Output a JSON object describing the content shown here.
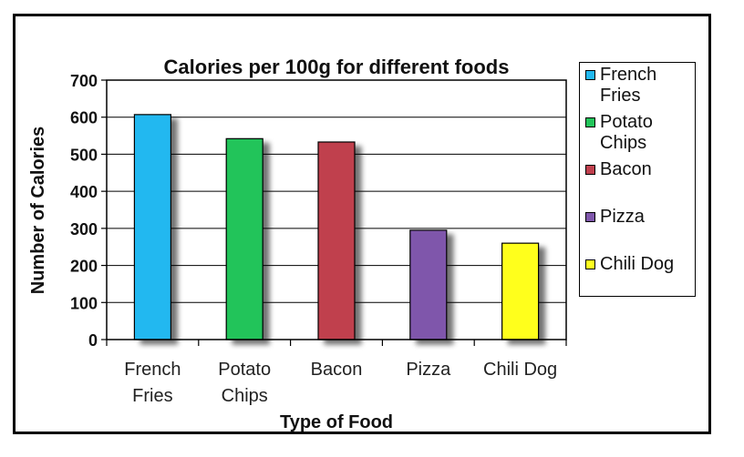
{
  "chart_data": {
    "type": "bar",
    "title": "Calories per 100g for different foods",
    "xlabel": "Type of Food",
    "ylabel": "Number of Calories",
    "ylim": [
      0,
      700
    ],
    "yticks": [
      0,
      100,
      200,
      300,
      400,
      500,
      600,
      700
    ],
    "grid": true,
    "legend_position": "right",
    "categories": [
      "French Fries",
      "Potato Chips",
      "Bacon",
      "Pizza",
      "Chili Dog"
    ],
    "values": [
      607,
      542,
      533,
      295,
      260
    ],
    "colors": [
      "#22b8f0",
      "#22c45a",
      "#c0404e",
      "#7f57ab",
      "#ffff1f"
    ]
  },
  "legend": {
    "items": [
      {
        "label": "French Fries",
        "color": "#22b8f0"
      },
      {
        "label": "Potato Chips",
        "color": "#22c45a"
      },
      {
        "label": "Bacon",
        "color": "#c0404e"
      },
      {
        "label": "Pizza",
        "color": "#7f57ab"
      },
      {
        "label": "Chili Dog",
        "color": "#ffff1f"
      }
    ]
  }
}
